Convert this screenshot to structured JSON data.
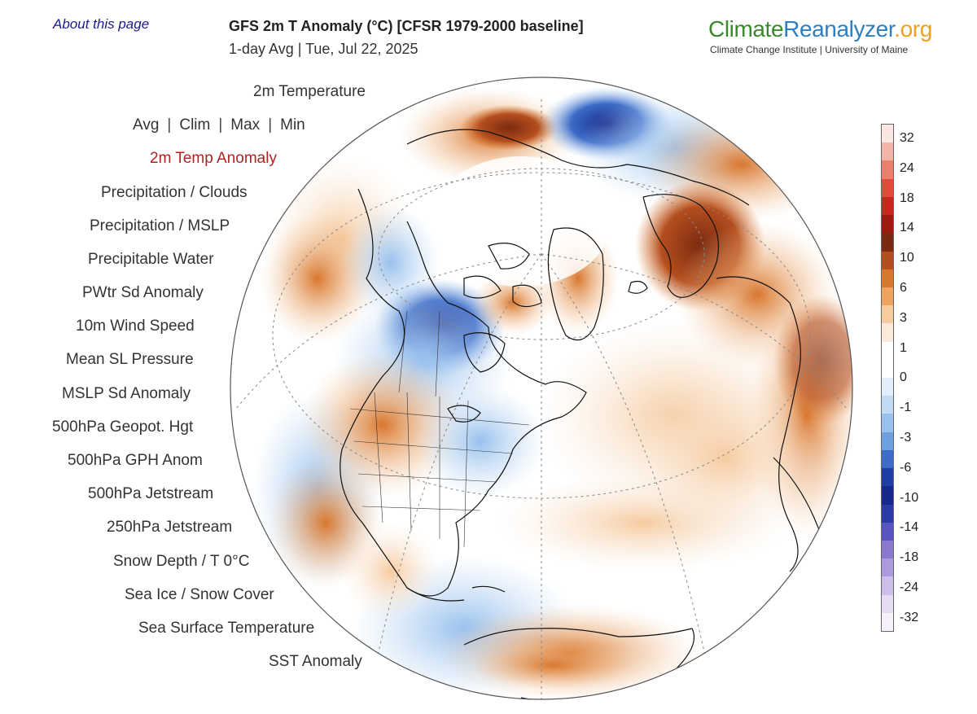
{
  "header": {
    "about_link": "About this page",
    "title": "GFS 2m T Anomaly (°C) [CFSR 1979-2000 baseline]",
    "subtitle": "1-day Avg | Tue, Jul 22, 2025"
  },
  "brand": {
    "part1": "Climate",
    "part2": "Reanalyzer",
    "part3": ".org",
    "tagline": "Climate Change Institute | University of Maine"
  },
  "menu": {
    "heading": "2m Temperature",
    "stat_options": [
      "Avg",
      "Clim",
      "Max",
      "Min"
    ],
    "items": [
      "2m Temp Anomaly",
      "Precipitation / Clouds",
      "Precipitation / MSLP",
      "Precipitable Water",
      "PWtr Sd Anomaly",
      "10m Wind Speed",
      "Mean SL Pressure",
      "MSLP Sd Anomaly",
      "500hPa Geopot. Hgt",
      "500hPa GPH Anom",
      "500hPa Jetstream",
      "250hPa Jetstream",
      "Snow Depth / T 0°C",
      "Sea Ice / Snow Cover",
      "Sea Surface Temperature",
      "SST Anomaly"
    ],
    "active_item": "2m Temp Anomaly"
  },
  "colorbar": {
    "labels": [
      "32",
      "24",
      "18",
      "14",
      "10",
      "6",
      "3",
      "1",
      "0",
      "-1",
      "-3",
      "-6",
      "-10",
      "-14",
      "-18",
      "-24",
      "-32"
    ],
    "colors": [
      "#fbe6e2",
      "#f3b5a6",
      "#ea7f6b",
      "#e24a3c",
      "#c8261e",
      "#9e1a10",
      "#7a2a10",
      "#b54e1e",
      "#d8772e",
      "#eea45e",
      "#f6cba0",
      "#faeadb",
      "#ffffff",
      "#ffffff",
      "#e2eefa",
      "#c2dbf4",
      "#98c1ee",
      "#6e9fe0",
      "#3e6cc8",
      "#1f3ea5",
      "#152a8c",
      "#2c3aa8",
      "#5854c0",
      "#8a78d0",
      "#ad9adc",
      "#cdbde8",
      "#e6dcf2",
      "#f6f0fa"
    ]
  },
  "map": {
    "projection": "orthographic-polar",
    "regions": [
      {
        "name": "north-america-west",
        "anomaly": "cool"
      },
      {
        "name": "canada-prairies",
        "anomaly": "strong-cool"
      },
      {
        "name": "us-midwest",
        "anomaly": "warm"
      },
      {
        "name": "us-northeast",
        "anomaly": "cool"
      },
      {
        "name": "greenland",
        "anomaly": "warm"
      },
      {
        "name": "scandinavia",
        "anomaly": "strong-warm"
      },
      {
        "name": "europe",
        "anomaly": "warm"
      },
      {
        "name": "north-africa",
        "anomaly": "warm"
      },
      {
        "name": "siberia-east",
        "anomaly": "strong-warm"
      },
      {
        "name": "siberia-central",
        "anomaly": "strong-cool"
      },
      {
        "name": "south-america",
        "anomaly": "warm"
      }
    ]
  }
}
